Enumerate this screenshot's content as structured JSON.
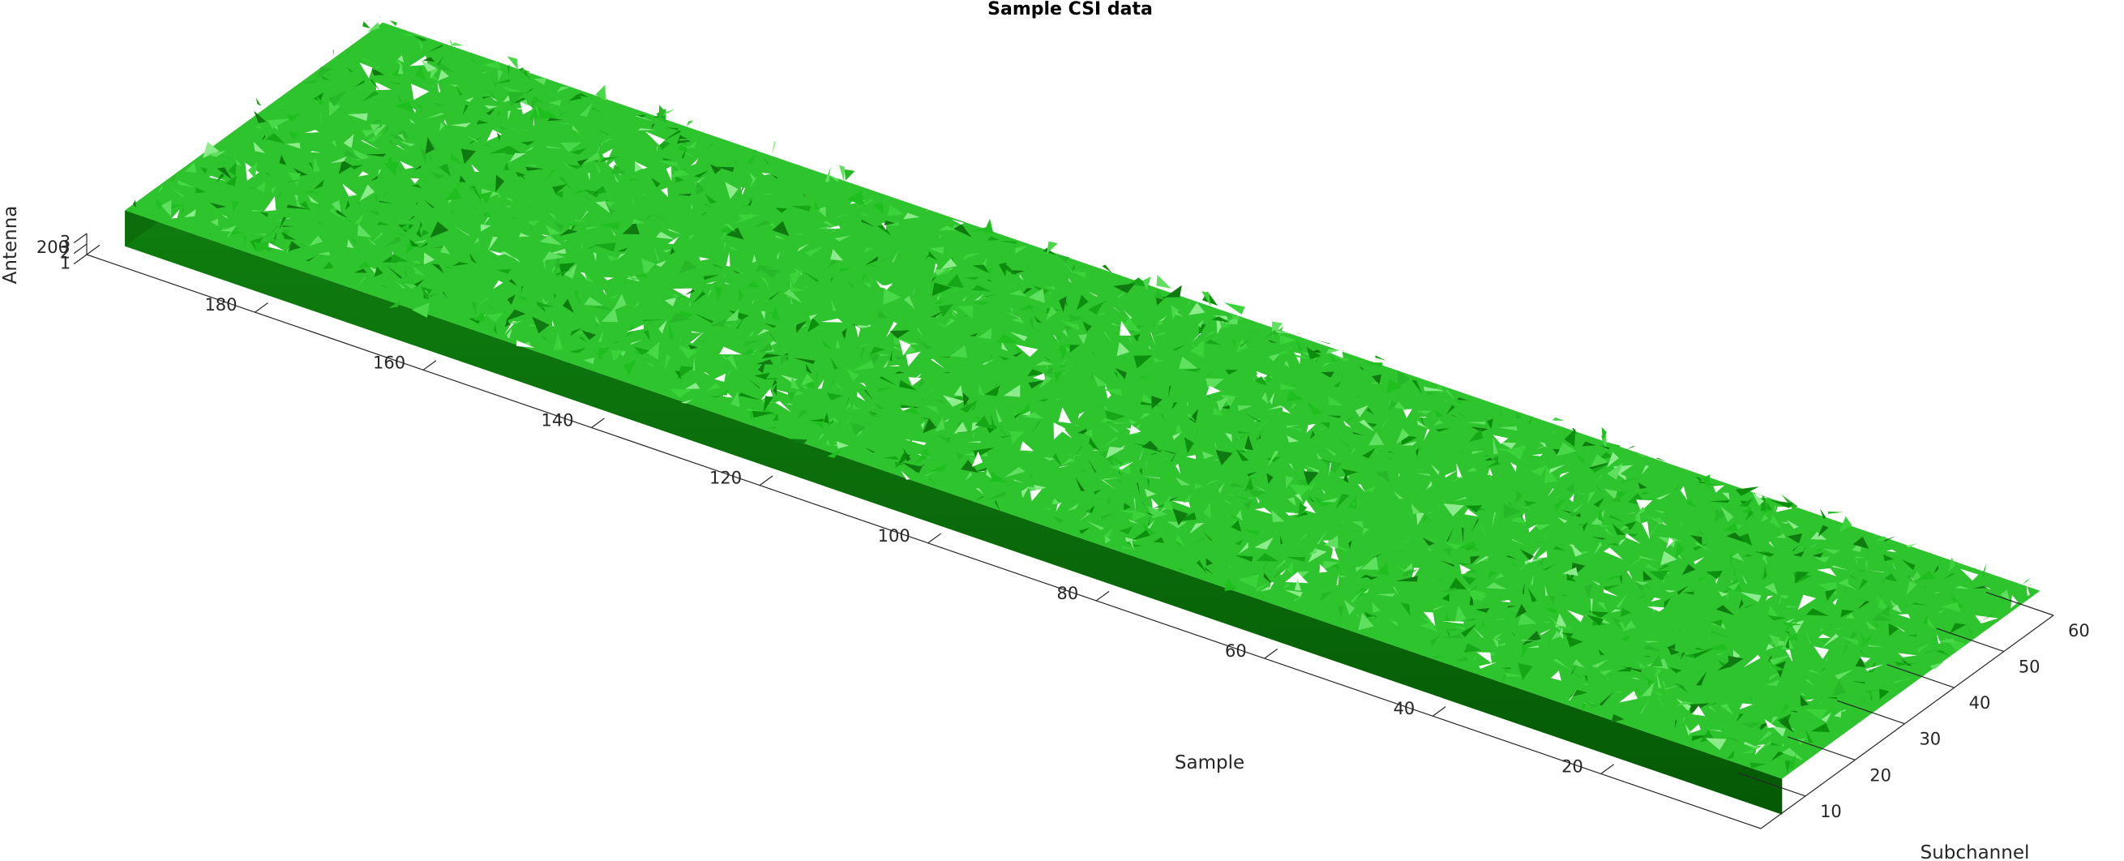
{
  "chart_data": {
    "type": "isosurface",
    "title": "Sample CSI data",
    "xlabel": "Sample",
    "ylabel": "Subchannel",
    "zlabel": "Antenna",
    "x_ticks": [
      "20",
      "40",
      "60",
      "80",
      "100",
      "120",
      "140",
      "160",
      "180",
      "200"
    ],
    "y_ticks": [
      "10",
      "20",
      "30",
      "40",
      "50",
      "60"
    ],
    "z_ticks": [
      "1",
      "2",
      "3"
    ],
    "xlim": [
      1,
      200
    ],
    "ylim": [
      1,
      60
    ],
    "zlim": [
      1,
      3
    ],
    "surface_color": "#22cc22",
    "surface_dark": "#0a6b0a",
    "grid": false
  }
}
